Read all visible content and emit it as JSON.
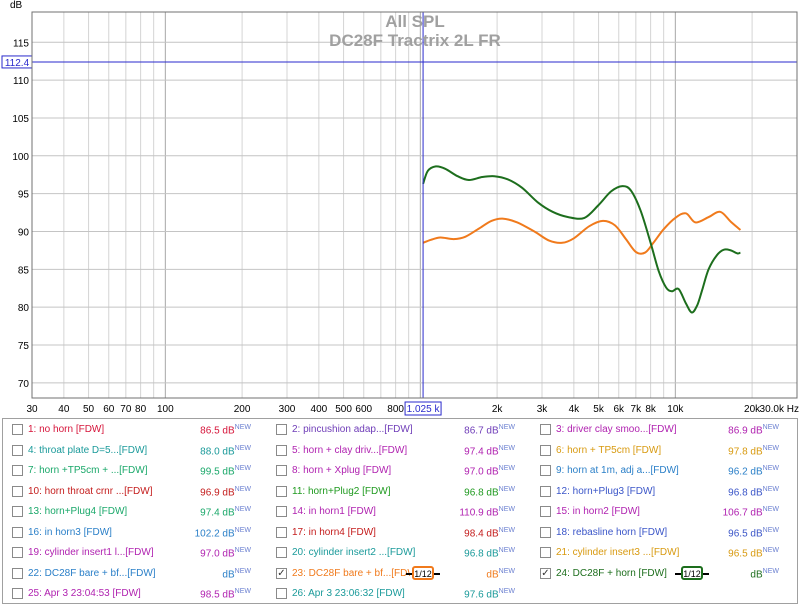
{
  "chart_data": {
    "type": "line",
    "title": "All SPL",
    "subtitle": "DC28F Tractrix 2L FR",
    "ylabel": "dB",
    "xlabel": "Hz",
    "xscale": "log",
    "xlim": [
      30,
      30000
    ],
    "ylim": [
      68,
      119
    ],
    "x_ticks": [
      30,
      40,
      50,
      60,
      70,
      80,
      100,
      200,
      300,
      400,
      500,
      600,
      800,
      2000,
      3000,
      4000,
      5000,
      6000,
      7000,
      8000,
      10000,
      20000,
      30000
    ],
    "x_tick_labels": [
      "30",
      "40",
      "50",
      "60",
      "70",
      "80",
      "100",
      "200",
      "300",
      "400",
      "500",
      "600",
      "800",
      "2k",
      "3k",
      "4k",
      "5k",
      "6k",
      "7k",
      "8k",
      "10k",
      "20k",
      "30.0k Hz"
    ],
    "y_ticks": [
      70,
      75,
      80,
      85,
      90,
      95,
      100,
      105,
      110,
      115
    ],
    "y_tick_labels": [
      "70",
      "75",
      "80",
      "85",
      "90",
      "95",
      "100",
      "105",
      "110",
      "115"
    ],
    "grid": true,
    "cursor": {
      "x": 1025,
      "y": 112.4,
      "x_label": "1.025 k",
      "y_label": "112.4"
    },
    "series": [
      {
        "name": "23: DC28F bare + bf...[FDW]",
        "color": "#f07a1c",
        "x": [
          1025,
          1100,
          1200,
          1350,
          1500,
          1700,
          1900,
          2100,
          2400,
          2800,
          3200,
          3600,
          4000,
          4600,
          5200,
          5800,
          6400,
          7000,
          7600,
          8200,
          9000,
          10000,
          11000,
          12000,
          13500,
          15000,
          16500,
          18000
        ],
        "values": [
          88.5,
          88.9,
          89.2,
          89.0,
          89.3,
          90.4,
          91.4,
          91.7,
          91.2,
          90.0,
          88.8,
          88.5,
          89.1,
          90.7,
          91.4,
          90.8,
          89.0,
          87.3,
          87.2,
          88.5,
          90.3,
          91.8,
          92.4,
          91.2,
          91.9,
          92.6,
          91.3,
          90.2
        ]
      },
      {
        "name": "24: DC28F + horn [FDW]",
        "color": "#1d6e1d",
        "x": [
          1025,
          1070,
          1150,
          1250,
          1400,
          1550,
          1750,
          1950,
          2200,
          2500,
          2900,
          3300,
          3800,
          4400,
          5000,
          5600,
          6200,
          6700,
          7300,
          8000,
          8600,
          9200,
          9700,
          10300,
          11000,
          11600,
          12200,
          12800,
          13500,
          14500,
          15500,
          16500,
          17500,
          18000
        ],
        "values": [
          96.3,
          98.0,
          98.6,
          98.3,
          97.3,
          96.8,
          97.2,
          97.3,
          96.9,
          95.8,
          93.8,
          92.6,
          91.9,
          91.8,
          93.5,
          95.3,
          96.0,
          95.4,
          92.8,
          88.5,
          84.8,
          82.6,
          82.1,
          82.4,
          80.5,
          79.3,
          80.3,
          82.5,
          85.0,
          86.8,
          87.6,
          87.5,
          87.1,
          87.2
        ]
      }
    ]
  },
  "legend": {
    "rows": [
      [
        {
          "name": "1: no horn [FDW]",
          "value": "86.5 dB",
          "color": "#d6143a",
          "checked": false
        },
        {
          "name": "2: pincushion adap...[FDW]",
          "value": "86.7 dB",
          "color": "#6f3db8",
          "checked": false
        },
        {
          "name": "3: driver clay smoo...[FDW]",
          "value": "86.9 dB",
          "color": "#b022b0",
          "checked": false
        }
      ],
      [
        {
          "name": "4: throat plate D=5...[FDW]",
          "value": "88.0 dB",
          "color": "#1a9a9a",
          "checked": false
        },
        {
          "name": "5: horn + clay driv...[FDW]",
          "value": "97.4 dB",
          "color": "#b022b0",
          "checked": false
        },
        {
          "name": "6: horn + TP5cm [FDW]",
          "value": "97.8 dB",
          "color": "#d89a10",
          "checked": false
        }
      ],
      [
        {
          "name": "7: horn +TP5cm + ...[FDW]",
          "value": "99.5 dB",
          "color": "#1aa86a",
          "checked": false
        },
        {
          "name": "8: horn + Xplug [FDW]",
          "value": "97.0 dB",
          "color": "#b022b0",
          "checked": false
        },
        {
          "name": "9: horn at 1m, adj a...[FDW]",
          "value": "96.2 dB",
          "color": "#2a7fc8",
          "checked": false
        }
      ],
      [
        {
          "name": "10: horn throat crnr ...[FDW]",
          "value": "96.9 dB",
          "color": "#c41c1c",
          "checked": false
        },
        {
          "name": "11: horn+Plug2 [FDW]",
          "value": "96.8 dB",
          "color": "#1f9a1f",
          "checked": false
        },
        {
          "name": "12: horn+Plug3 [FDW]",
          "value": "96.8 dB",
          "color": "#3a55c8",
          "checked": false
        }
      ],
      [
        {
          "name": "13: horn+Plug4 [FDW]",
          "value": "97.4 dB",
          "color": "#1aa86a",
          "checked": false
        },
        {
          "name": "14: in horn1 [FDW]",
          "value": "110.9 dB",
          "color": "#b022b0",
          "checked": false
        },
        {
          "name": "15: in horn2 [FDW]",
          "value": "106.7 dB",
          "color": "#b022b0",
          "checked": false
        }
      ],
      [
        {
          "name": "16: in horn3 [FDW]",
          "value": "102.2 dB",
          "color": "#2a7fc8",
          "checked": false
        },
        {
          "name": "17: in horn4 [FDW]",
          "value": "98.4 dB",
          "color": "#c41c1c",
          "checked": false
        },
        {
          "name": "18: rebasline horn [FDW]",
          "value": "96.5 dB",
          "color": "#3a55c8",
          "checked": false
        }
      ],
      [
        {
          "name": "19: cylinder insert1 l...[FDW]",
          "value": "97.0 dB",
          "color": "#b022b0",
          "checked": false
        },
        {
          "name": "20: cylinder insert2 ...[FDW]",
          "value": "96.8 dB",
          "color": "#1a9a9a",
          "checked": false
        },
        {
          "name": "21: cylinder insert3 ...[FDW]",
          "value": "96.5 dB",
          "color": "#d89a10",
          "checked": false
        }
      ],
      [
        {
          "name": "22: DC28F bare + bf...[FDW]",
          "value": "dB",
          "color": "#2a7fc8",
          "checked": false
        },
        {
          "name": "23: DC28F bare + bf...[FDW]",
          "value": "dB",
          "color": "#f07a1c",
          "checked": true,
          "smoothing": "1/12"
        },
        {
          "name": "24: DC28F + horn [FDW]",
          "value": "dB",
          "color": "#1d6e1d",
          "checked": true,
          "smoothing": "1/12"
        }
      ],
      [
        {
          "name": "25: Apr 3 23:04:53 [FDW]",
          "value": "98.5 dB",
          "color": "#b022b0",
          "checked": false
        },
        {
          "name": "26: Apr 3 23:06:32 [FDW]",
          "value": "97.6 dB",
          "color": "#1a9a9a",
          "checked": false
        }
      ]
    ],
    "sup_text": "NEW"
  }
}
